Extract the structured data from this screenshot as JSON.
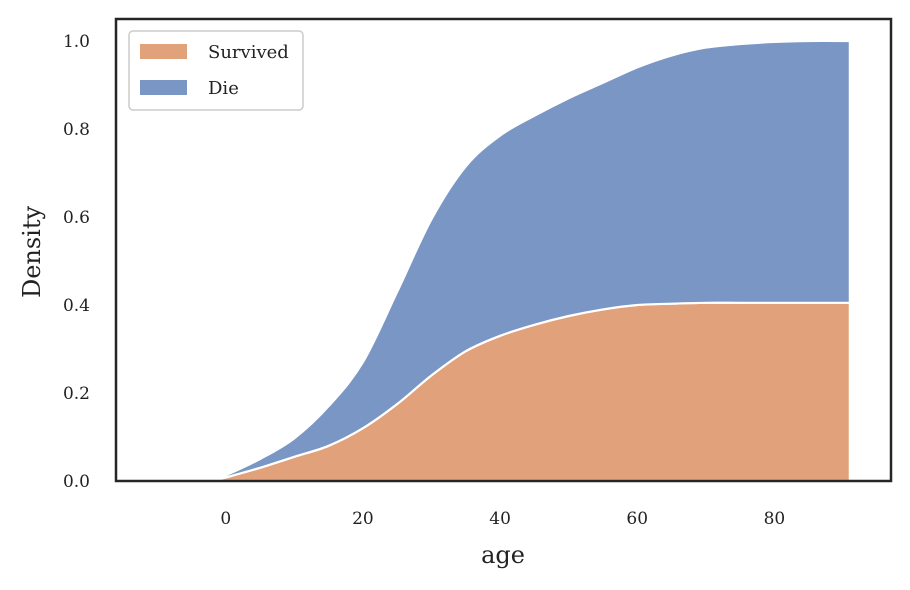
{
  "chart_data": {
    "type": "area",
    "stacked": "fill",
    "xlabel": "age",
    "ylabel": "Density",
    "xlim": [
      -16,
      97
    ],
    "ylim": [
      0,
      1.05
    ],
    "xticks": [
      0,
      20,
      40,
      60,
      80
    ],
    "yticks": [
      0.0,
      0.2,
      0.4,
      0.6,
      0.8,
      1.0
    ],
    "xtick_labels": [
      "0",
      "20",
      "40",
      "60",
      "80"
    ],
    "ytick_labels": [
      "0.0",
      "0.2",
      "0.4",
      "0.6",
      "0.8",
      "1.0"
    ],
    "grid": false,
    "legend_position": "top-left",
    "x": [
      -2,
      0,
      5,
      10,
      15,
      20,
      25,
      30,
      35,
      40,
      45,
      50,
      55,
      60,
      65,
      70,
      75,
      80,
      85,
      91
    ],
    "series": [
      {
        "name": "Survived",
        "color": "#e1a27b",
        "values": [
          0.0,
          0.008,
          0.03,
          0.055,
          0.08,
          0.12,
          0.175,
          0.24,
          0.295,
          0.33,
          0.355,
          0.375,
          0.39,
          0.4,
          0.403,
          0.405,
          0.405,
          0.405,
          0.405,
          0.405
        ]
      },
      {
        "name": "Die",
        "color": "#7996c4",
        "values": [
          0.0,
          0.005,
          0.02,
          0.042,
          0.09,
          0.15,
          0.255,
          0.355,
          0.42,
          0.455,
          0.475,
          0.495,
          0.515,
          0.54,
          0.564,
          0.58,
          0.588,
          0.593,
          0.595,
          0.595
        ]
      }
    ]
  }
}
